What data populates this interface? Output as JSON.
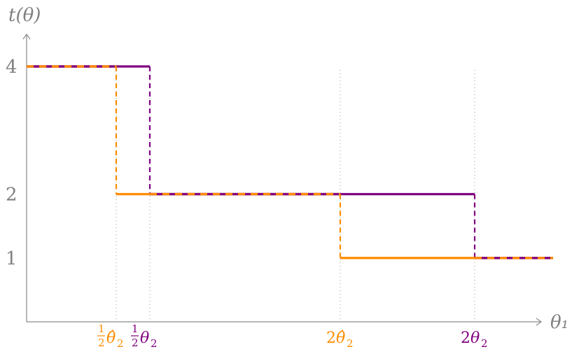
{
  "chart_data": {
    "type": "line",
    "xlabel": "θ₁",
    "ylabel": "t(θ)",
    "yticks": [
      {
        "value": 4,
        "label": "4"
      },
      {
        "value": 2,
        "label": "2"
      },
      {
        "value": 1,
        "label": "1"
      }
    ],
    "ylim": [
      0,
      4.05
    ],
    "xlim": [
      0,
      2.4
    ],
    "xticks": [
      {
        "value": 0.4,
        "label_parts": [
          "1",
          "2",
          "θ̂",
          "2"
        ],
        "color": "#ff8c00"
      },
      {
        "value": 0.55,
        "label_parts": [
          "1",
          "2",
          "θ",
          "2"
        ],
        "color": "#800080"
      },
      {
        "value": 1.4,
        "label_parts": [
          "2",
          "θ̂",
          "2"
        ],
        "color": "#ff8c00"
      },
      {
        "value": 2.0,
        "label_parts": [
          "2",
          "θ",
          "2"
        ],
        "color": "#800080"
      }
    ],
    "series": [
      {
        "color": "#800080",
        "x": [
          0,
          0.55,
          0.55,
          2.0,
          2.0,
          2.35
        ],
        "y": [
          4,
          4,
          2,
          2,
          1,
          1
        ]
      },
      {
        "color": "#ff8c00",
        "x": [
          0,
          0.4,
          0.4,
          1.4,
          1.4,
          2.35
        ],
        "y": [
          4,
          4,
          2,
          2,
          1,
          1
        ]
      }
    ],
    "grid": false
  }
}
